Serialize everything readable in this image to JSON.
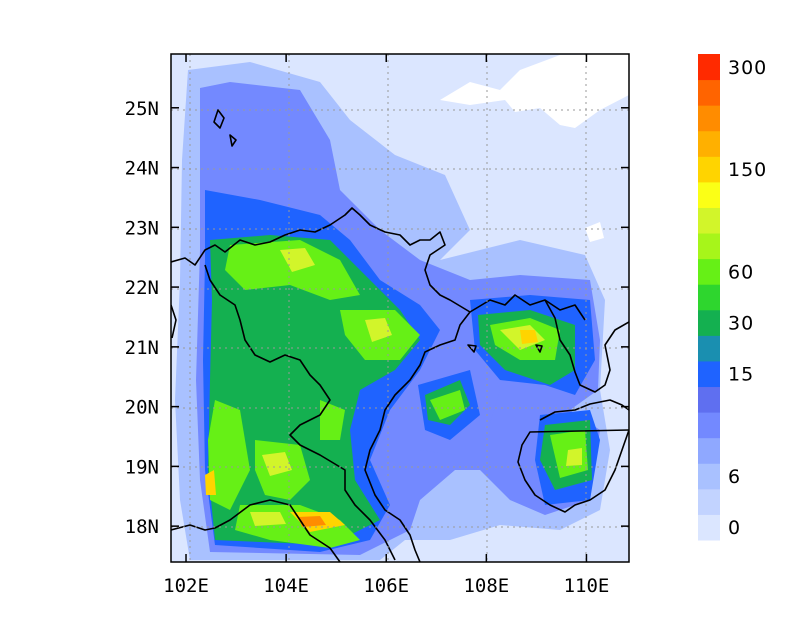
{
  "map": {
    "extent": {
      "lon": [
        101.7,
        110.85
      ],
      "lat": [
        17.4,
        25.9
      ]
    },
    "x_ticks": [
      {
        "value": 102,
        "label": "102E"
      },
      {
        "value": 104,
        "label": "104E"
      },
      {
        "value": 106,
        "label": "106E"
      },
      {
        "value": 108,
        "label": "108E"
      },
      {
        "value": 110,
        "label": "110E"
      }
    ],
    "y_ticks": [
      {
        "value": 18,
        "label": "18N"
      },
      {
        "value": 19,
        "label": "19N"
      },
      {
        "value": 20,
        "label": "20N"
      },
      {
        "value": 21,
        "label": "21N"
      },
      {
        "value": 22,
        "label": "22N"
      },
      {
        "value": 23,
        "label": "23N"
      },
      {
        "value": 24,
        "label": "24N"
      },
      {
        "value": 25,
        "label": "25N"
      }
    ],
    "gridlines": "dotted",
    "colorbar": {
      "placement": "right",
      "colors": [
        "#dbe6ff",
        "#c2d3ff",
        "#a9c1ff",
        "#8fa8ff",
        "#7389ff",
        "#5f6ff0",
        "#1f63ff",
        "#1a8fb0",
        "#14b050",
        "#2ed62e",
        "#66f016",
        "#a7f51a",
        "#d2f52a",
        "#fbff16",
        "#ffd400",
        "#ffb000",
        "#ff8c00",
        "#ff6400",
        "#ff2a00"
      ],
      "labels": [
        {
          "index": 0,
          "text": "0"
        },
        {
          "index": 2,
          "text": "6"
        },
        {
          "index": 6,
          "text": "15"
        },
        {
          "index": 8,
          "text": "30"
        },
        {
          "index": 10,
          "text": "60"
        },
        {
          "index": 14,
          "text": "150"
        },
        {
          "index": 18,
          "text": "300"
        }
      ]
    }
  }
}
